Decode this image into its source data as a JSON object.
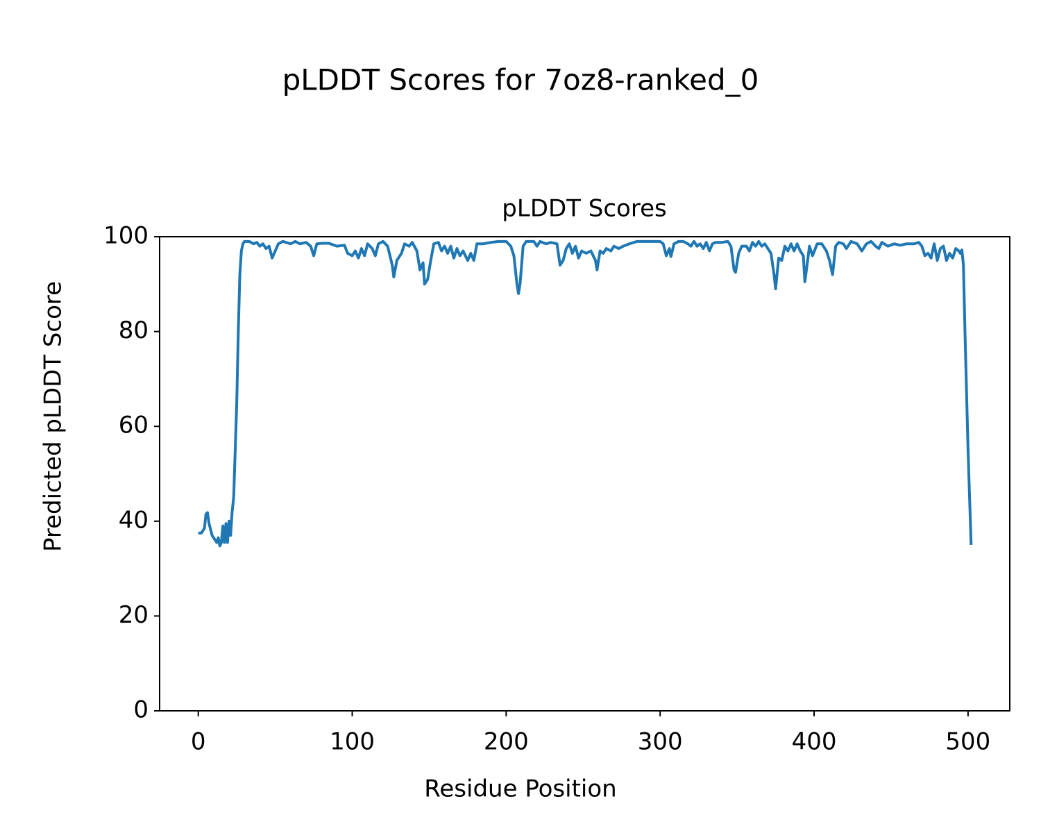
{
  "chart_data": {
    "type": "line",
    "title": "pLDDT Scores for 7oz8-ranked_0",
    "subtitle": "pLDDT Scores",
    "x_label": "Residue Position",
    "y_label": "Predicted pLDDT Score",
    "xlim": [
      -25.1,
      527.1
    ],
    "ylim": [
      0,
      100
    ],
    "xticks": [
      0,
      100,
      200,
      300,
      400,
      500
    ],
    "yticks": [
      0,
      20,
      40,
      60,
      80,
      100
    ],
    "grid": false,
    "series": [
      {
        "name": "pLDDT",
        "color": "#1f77b4",
        "x": [
          0,
          2,
          4,
          5,
          6,
          7,
          9,
          11,
          12,
          13,
          14,
          15,
          16,
          17,
          18,
          19,
          20,
          21,
          22,
          23,
          24,
          25,
          26,
          27,
          28,
          29,
          30,
          33,
          36,
          38,
          40,
          42,
          44,
          46,
          48,
          50,
          52,
          55,
          60,
          63,
          66,
          70,
          73,
          75,
          77,
          80,
          85,
          90,
          95,
          97,
          100,
          102,
          104,
          106,
          108,
          110,
          113,
          115,
          117,
          120,
          123,
          126,
          127,
          129,
          132,
          134,
          137,
          139,
          142,
          144,
          146,
          147,
          149,
          151,
          153,
          156,
          158,
          160,
          162,
          164,
          166,
          168,
          170,
          172,
          175,
          177,
          179,
          181,
          185,
          190,
          195,
          200,
          203,
          205,
          207,
          208,
          209,
          211,
          213,
          218,
          220,
          222,
          226,
          229,
          233,
          235,
          237,
          239,
          241,
          243,
          245,
          247,
          249,
          252,
          255,
          258,
          259,
          261,
          263,
          265,
          268,
          270,
          273,
          276,
          280,
          285,
          290,
          295,
          300,
          302,
          304,
          306,
          307,
          309,
          312,
          315,
          318,
          320,
          322,
          324,
          326,
          328,
          330,
          332,
          334,
          336,
          340,
          344,
          346,
          348,
          349,
          351,
          353,
          356,
          358,
          360,
          362,
          364,
          366,
          368,
          372,
          374,
          375,
          377,
          379,
          381,
          383,
          385,
          387,
          389,
          391,
          393,
          394,
          395,
          397,
          399,
          402,
          405,
          408,
          410,
          412,
          414,
          416,
          419,
          421,
          424,
          428,
          431,
          434,
          437,
          440,
          442,
          444,
          448,
          452,
          456,
          460,
          465,
          468,
          470,
          472,
          474,
          476,
          478,
          480,
          482,
          484,
          486,
          488,
          490,
          492,
          494,
          495,
          496,
          497,
          498,
          500,
          502
        ],
        "values": [
          37.5,
          37.5,
          38.5,
          41.5,
          41.8,
          39.5,
          37,
          36,
          35.5,
          36.5,
          34.8,
          35.5,
          39,
          35.5,
          39.5,
          35.5,
          40,
          37,
          42,
          45,
          55,
          65,
          80,
          92,
          97,
          98.5,
          99,
          99,
          98.5,
          98.8,
          98,
          98.5,
          97.5,
          98,
          95.5,
          97,
          98.5,
          99,
          98.5,
          99,
          98.5,
          98.8,
          98,
          96,
          98.5,
          98.6,
          98.6,
          98,
          98.2,
          96.5,
          96,
          97,
          95.5,
          97.5,
          96,
          98.5,
          97.5,
          96,
          98.5,
          99,
          98,
          94,
          91.5,
          95,
          96.5,
          98.5,
          98,
          98.8,
          97,
          93,
          94.5,
          90,
          91,
          95,
          98.5,
          98.8,
          97,
          98,
          96.5,
          98,
          95.5,
          97.5,
          96,
          97,
          95,
          96.5,
          95,
          98.5,
          98.5,
          98.8,
          99,
          99,
          98,
          96,
          90,
          88,
          90,
          98,
          99,
          99,
          98,
          99,
          98.5,
          98.8,
          98.5,
          94,
          95,
          97.5,
          98.5,
          96.5,
          98,
          95.5,
          97,
          96.5,
          97,
          95,
          93,
          97,
          96.5,
          97.5,
          97,
          98,
          97.5,
          98,
          98.5,
          99,
          99,
          99,
          99,
          98.5,
          96,
          97.5,
          95.8,
          98.5,
          99,
          99,
          98.5,
          98,
          99,
          98,
          98.5,
          97.5,
          98.8,
          97,
          98.5,
          98.8,
          98.8,
          99,
          98,
          93,
          92.5,
          96.5,
          98,
          98,
          97,
          98.8,
          98,
          99,
          98,
          98.5,
          96.5,
          92,
          89,
          95.5,
          95,
          98,
          97,
          98.5,
          97,
          98.5,
          97,
          96,
          90.5,
          93,
          98,
          96,
          98.5,
          98.5,
          97,
          95,
          92,
          98,
          98.8,
          98.5,
          97.5,
          99,
          98.5,
          97,
          98.5,
          99,
          98,
          97.5,
          98.8,
          98,
          98.5,
          98.2,
          98.5,
          98.5,
          98.8,
          98,
          96,
          96.5,
          95.5,
          98.5,
          95,
          97.5,
          98,
          95,
          96.5,
          95.5,
          97.5,
          97,
          96.5,
          97.2,
          94,
          80,
          55,
          35
        ]
      }
    ]
  }
}
